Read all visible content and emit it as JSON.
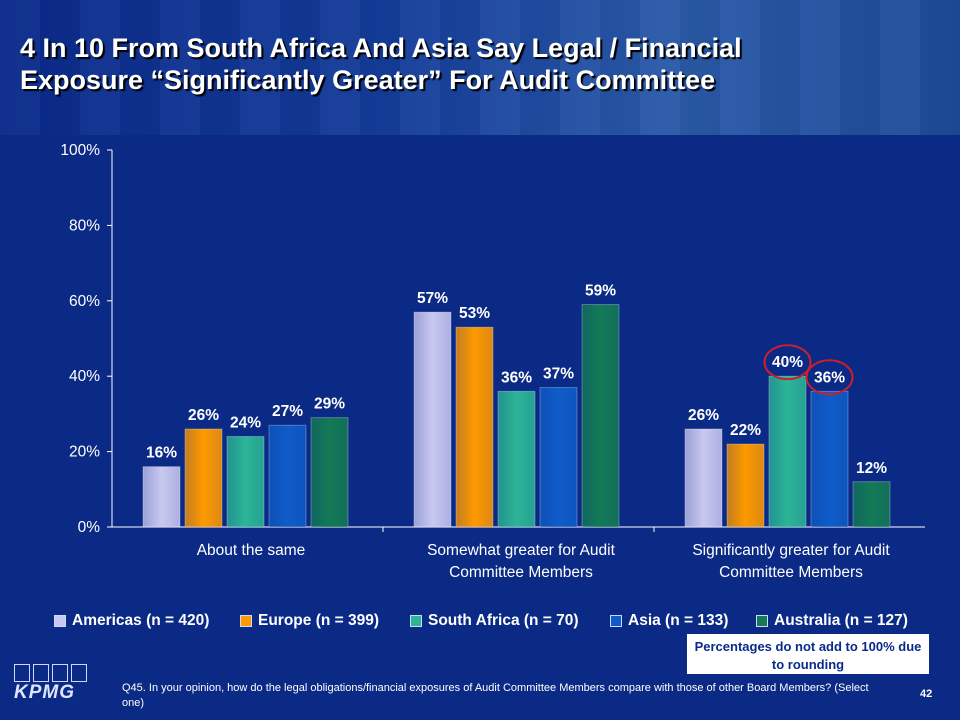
{
  "title_line1": "4 In 10 From South Africa And Asia Say Legal / Financial",
  "title_line2": "Exposure “Significantly Greater” For Audit Committee",
  "chart_data": {
    "type": "bar",
    "categories": [
      "About the same",
      "Somewhat greater for Audit Committee Members",
      "Significantly greater for Audit Committee Members"
    ],
    "category_lines": [
      [
        "About the same"
      ],
      [
        "Somewhat greater for Audit",
        "Committee Members"
      ],
      [
        "Significantly greater for Audit",
        "Committee Members"
      ]
    ],
    "series": [
      {
        "name": "Americas (n = 420)",
        "values": [
          16,
          57,
          26
        ],
        "color": "#c9c8f0"
      },
      {
        "name": "Europe (n = 399)",
        "values": [
          26,
          53,
          22
        ],
        "color": "#ff9900"
      },
      {
        "name": "South Africa (n = 70)",
        "values": [
          24,
          36,
          40
        ],
        "color": "#2bb596"
      },
      {
        "name": "Asia (n = 133)",
        "values": [
          27,
          37,
          36
        ],
        "color": "#0f5cc8"
      },
      {
        "name": "Australia (n = 127)",
        "values": [
          29,
          59,
          12
        ],
        "color": "#137a55"
      }
    ],
    "ylim": [
      0,
      100
    ],
    "yticks": [
      "0%",
      "20%",
      "40%",
      "60%",
      "80%",
      "100%"
    ],
    "value_suffix": "%",
    "highlighted": [
      {
        "category": 2,
        "series": 2
      },
      {
        "category": 2,
        "series": 3
      }
    ],
    "highlight_color": "#cc1f2a",
    "grid": false,
    "legend_position": "bottom"
  },
  "note": "Percentages do not add to 100% due to rounding",
  "footnote": "Q45. In your opinion, how do the legal obligations/financial exposures of Audit Committee Members compare with those of other Board Members? (Select one)",
  "page_number": "42",
  "logo_text": "KPMG",
  "colors": {
    "background": "#0b2a86",
    "axis": "#ffffff"
  }
}
